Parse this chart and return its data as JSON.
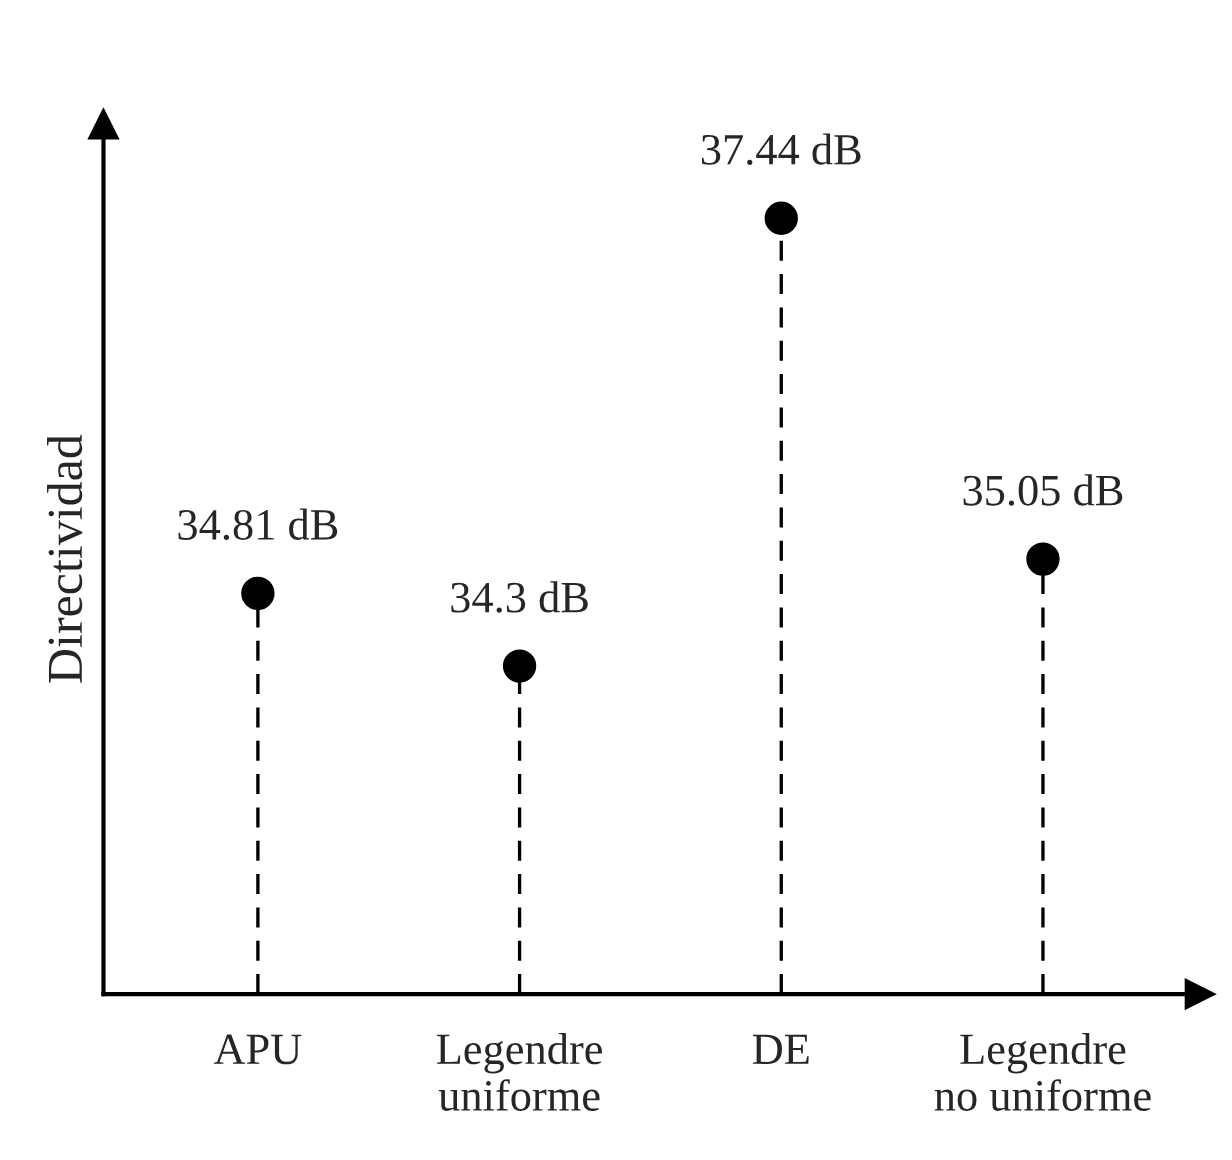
{
  "chart_data": {
    "type": "lollipop",
    "ylabel": "Directividad",
    "ylim": [
      32,
      38.1
    ],
    "categories": [
      "APU",
      "Legendre\nuniforme",
      "DE",
      "Legendre\nno uniforme"
    ],
    "values": [
      34.81,
      34.3,
      37.44,
      35.05
    ],
    "value_labels": [
      "34.81 dB",
      "34.3 dB",
      "37.44 dB",
      "35.05 dB"
    ],
    "color": "#000000",
    "marker": "circle",
    "line_style": "dashed",
    "legend": false
  }
}
